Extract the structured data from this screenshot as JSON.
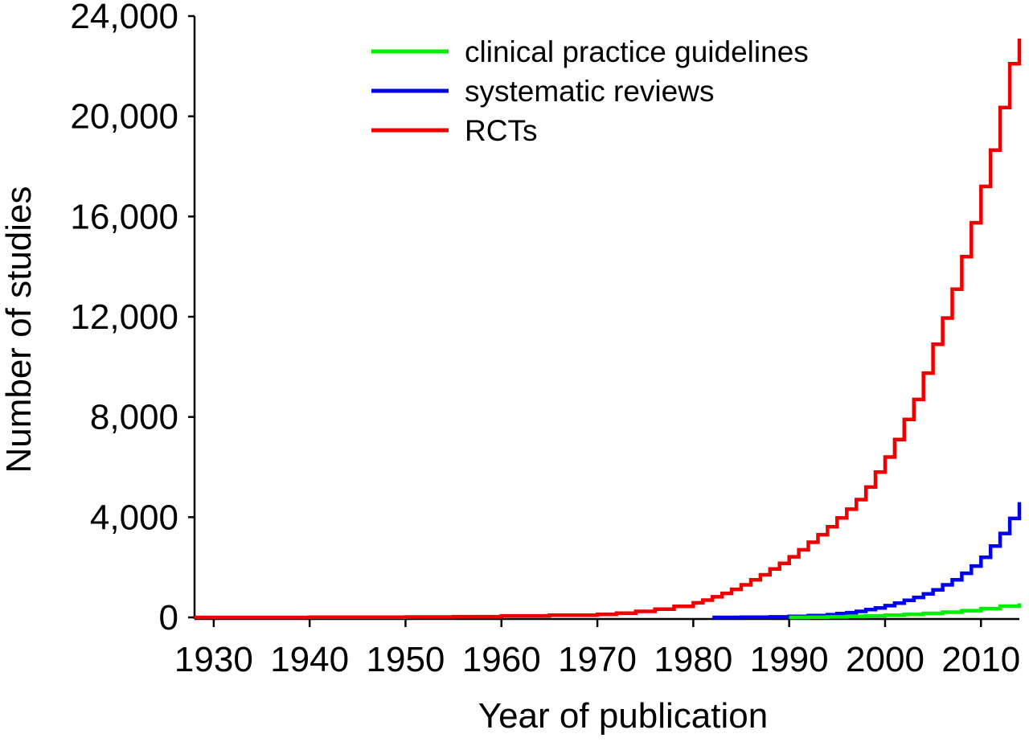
{
  "chart_data": {
    "type": "line",
    "title": "",
    "xlabel": "Year of publication",
    "ylabel": "Number of studies",
    "xlim": [
      1928,
      2014
    ],
    "ylim": [
      0,
      24000
    ],
    "xticks": [
      1930,
      1940,
      1950,
      1960,
      1970,
      1980,
      1990,
      2000,
      2010
    ],
    "xtick_labels": [
      "1930",
      "1940",
      "1950",
      "1960",
      "1970",
      "1980",
      "1990",
      "2000",
      "2010"
    ],
    "yticks": [
      0,
      4000,
      8000,
      12000,
      16000,
      20000,
      24000
    ],
    "ytick_labels": [
      "0",
      "4,000",
      "8,000",
      "12,000",
      "16,000",
      "20,000",
      "24,000"
    ],
    "grid": false,
    "legend_position": "top-center",
    "step": true,
    "series": [
      {
        "name": "clinical practice guidelines",
        "color": "#00ee00",
        "x": [
          1990,
          1992,
          1994,
          1996,
          1998,
          2000,
          2002,
          2004,
          2006,
          2008,
          2010,
          2012,
          2014
        ],
        "y": [
          0,
          10,
          20,
          40,
          60,
          90,
          120,
          160,
          210,
          270,
          350,
          450,
          560
        ]
      },
      {
        "name": "systematic reviews",
        "color": "#0000ee",
        "x": [
          1982,
          1985,
          1988,
          1990,
          1992,
          1994,
          1995,
          1996,
          1997,
          1998,
          1999,
          2000,
          2001,
          2002,
          2003,
          2004,
          2005,
          2006,
          2007,
          2008,
          2009,
          2010,
          2011,
          2012,
          2013,
          2014
        ],
        "y": [
          0,
          5,
          20,
          40,
          70,
          110,
          150,
          190,
          240,
          310,
          380,
          470,
          570,
          680,
          800,
          940,
          1100,
          1300,
          1500,
          1760,
          2050,
          2400,
          2850,
          3350,
          3950,
          4600
        ]
      },
      {
        "name": "RCTs",
        "color": "#ee0000",
        "x": [
          1928,
          1940,
          1950,
          1955,
          1960,
          1965,
          1970,
          1972,
          1974,
          1976,
          1978,
          1980,
          1981,
          1982,
          1983,
          1984,
          1985,
          1986,
          1987,
          1988,
          1989,
          1990,
          1991,
          1992,
          1993,
          1994,
          1995,
          1996,
          1997,
          1998,
          1999,
          2000,
          2001,
          2002,
          2003,
          2004,
          2005,
          2006,
          2007,
          2008,
          2009,
          2010,
          2011,
          2012,
          2013,
          2014
        ],
        "y": [
          0,
          5,
          15,
          30,
          60,
          90,
          120,
          170,
          240,
          330,
          440,
          580,
          690,
          820,
          960,
          1120,
          1300,
          1500,
          1700,
          1930,
          2160,
          2420,
          2700,
          3000,
          3300,
          3620,
          3970,
          4320,
          4700,
          5200,
          5800,
          6400,
          7100,
          7900,
          8700,
          9750,
          10900,
          11950,
          13100,
          14400,
          15750,
          17200,
          18650,
          20350,
          22100,
          23100
        ]
      }
    ]
  }
}
